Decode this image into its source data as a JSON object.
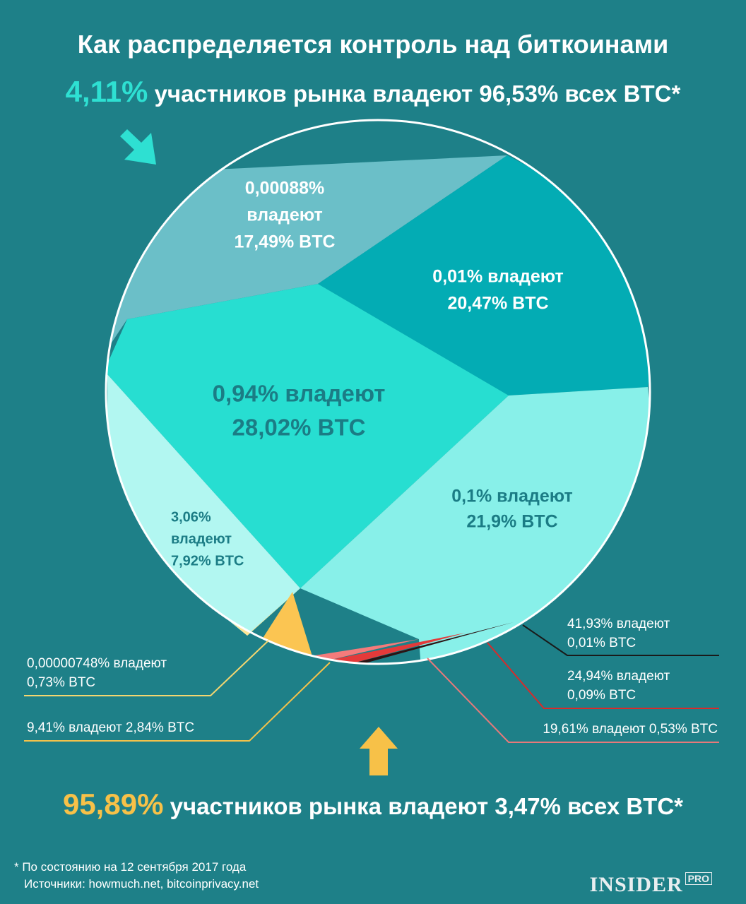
{
  "header": {
    "title": "Как распределяется контроль над биткоинами",
    "top_highlight": "4,11%",
    "top_text": " участников рынка владеют 96,53% всех BTC*",
    "bottom_highlight": "95,89%",
    "bottom_text": " участников рынка владеют 3,47% всех BTC*"
  },
  "footer": {
    "note": "* По состоянию на 12 сентября 2017 года",
    "sources": "Источники: howmuch.net, bitcoinprivacy.net",
    "brand": "INSIDER",
    "brand_suffix": "PRO"
  },
  "colors": {
    "background": "#1e8088",
    "accent_top": "#2ee0d2",
    "accent_bottom": "#f7c148"
  },
  "chart_data": {
    "type": "pie",
    "title": "Как распределяется контроль над биткоинами",
    "slices": [
      {
        "share_of_holders": "0,00088%",
        "btc_share": "17,49% BTC",
        "value": 17.49,
        "lines": [
          "0,00088%",
          "владеют",
          "17,49% BTC"
        ],
        "color": "#6bbfc8",
        "text_color": "#ffffff"
      },
      {
        "share_of_holders": "0,01%",
        "btc_share": "20,47% BTC",
        "value": 20.47,
        "lines": [
          "0,01% владеют",
          "20,47% BTC"
        ],
        "color": "#03acb4",
        "text_color": "#ffffff"
      },
      {
        "share_of_holders": "0,94%",
        "btc_share": "28,02% BTC",
        "value": 28.02,
        "lines": [
          "0,94% владеют",
          "28,02% BTC"
        ],
        "color": "#27ded1",
        "text_color": "#1b7c85"
      },
      {
        "share_of_holders": "0,1%",
        "btc_share": "21,9% BTC",
        "value": 21.9,
        "lines": [
          "0,1% владеют",
          "21,9% BTC"
        ],
        "color": "#88f0e9",
        "text_color": "#1b7c85"
      },
      {
        "share_of_holders": "3,06%",
        "btc_share": "7,92% BTC",
        "value": 7.92,
        "lines": [
          "3,06%",
          "владеют",
          "7,92% BTC"
        ],
        "color": "#b2f7f1",
        "text_color": "#1b7c85"
      },
      {
        "share_of_holders": "0,00000748%",
        "btc_share": "0,73% BTC",
        "value": 0.73,
        "lines": [
          "0,00000748% владеют",
          "0,73% BTC"
        ],
        "color": "#fde596",
        "line_color": "#f4d670"
      },
      {
        "share_of_holders": "9,41%",
        "btc_share": "2,84% BTC",
        "value": 2.84,
        "lines": [
          "9,41% владеют 2,84% BTC"
        ],
        "color": "#fbc552",
        "line_color": "#f4c24a"
      },
      {
        "share_of_holders": "19,61%",
        "btc_share": "0,53% BTC",
        "value": 0.53,
        "lines": [
          "19,61% владеют 0,53% BTC"
        ],
        "color": "#f47b7b",
        "line_color": "#e7797a"
      },
      {
        "share_of_holders": "24,94%",
        "btc_share": "0,09% BTC",
        "value": 0.09,
        "lines": [
          "24,94% владеют",
          "0,09% BTC"
        ],
        "color": "#e43a3a",
        "line_color": "#d92a2a"
      },
      {
        "share_of_holders": "41,93%",
        "btc_share": "0,01% BTC",
        "value": 0.01,
        "lines": [
          "41,93% владеют",
          "0,01% BTC"
        ],
        "color": "#2b1414",
        "line_color": "#1a1a1a"
      }
    ]
  }
}
